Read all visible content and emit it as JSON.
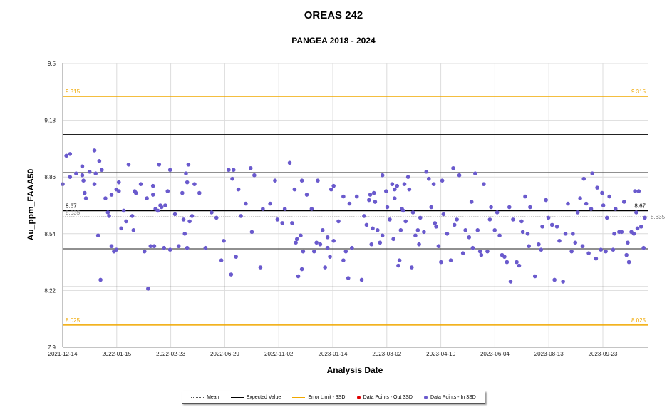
{
  "chart_data": {
    "type": "scatter",
    "title": "OREAS 242",
    "subtitle": "PANGEA 2018 - 2024",
    "xlabel": "Analysis Date",
    "ylabel": "Au_ppm_FAAA50",
    "ylim": [
      7.9,
      9.5
    ],
    "y_ticks": [
      "9.5",
      "9.18",
      "8.86",
      "8.54",
      "8.22",
      "7.9"
    ],
    "x_ticks": [
      "2021-12-14",
      "2022-01-15",
      "2022-02-23",
      "2022-06-29",
      "2022-11-02",
      "2023-01-14",
      "2023-03-02",
      "2023-04-10",
      "2023-06-04",
      "2023-08-13",
      "2023-09-23"
    ],
    "grid": true,
    "reference_lines": {
      "mean": {
        "value": 8.635,
        "label": "8.635",
        "color": "#777777"
      },
      "expected": {
        "value": 8.67,
        "label": "8.67",
        "color": "#000000"
      },
      "sd_lines": [
        9.1,
        8.885,
        8.455,
        8.24
      ],
      "error_upper": {
        "value": 9.315,
        "label": "9.315",
        "color": "#f0a800"
      },
      "error_lower": {
        "value": 8.025,
        "label": "8.025",
        "color": "#f0a800"
      }
    },
    "series": [
      {
        "name": "Data Points - Out 3SD",
        "color": "#e00000",
        "points": []
      },
      {
        "name": "Data Points - In 3SD",
        "color": "#6a5acd",
        "points": [
          [
            0.0,
            8.82
          ],
          [
            0.15,
            8.98
          ],
          [
            0.3,
            8.86
          ],
          [
            0.3,
            8.99
          ],
          [
            0.55,
            8.88
          ],
          [
            0.8,
            8.87
          ],
          [
            0.8,
            8.92
          ],
          [
            0.85,
            8.84
          ],
          [
            0.9,
            8.77
          ],
          [
            0.95,
            8.74
          ],
          [
            1.1,
            8.89
          ],
          [
            1.3,
            8.82
          ],
          [
            1.3,
            9.01
          ],
          [
            1.35,
            8.88
          ],
          [
            1.45,
            8.53
          ],
          [
            1.5,
            8.95
          ],
          [
            1.55,
            8.28
          ],
          [
            1.6,
            8.9
          ],
          [
            1.75,
            8.74
          ],
          [
            1.85,
            8.66
          ],
          [
            1.9,
            8.64
          ],
          [
            2.0,
            8.47
          ],
          [
            2.0,
            8.76
          ],
          [
            2.1,
            8.44
          ],
          [
            2.2,
            8.45
          ],
          [
            2.2,
            8.79
          ],
          [
            2.3,
            8.83
          ],
          [
            2.3,
            8.78
          ],
          [
            2.4,
            8.57
          ],
          [
            2.5,
            8.67
          ],
          [
            2.6,
            8.61
          ],
          [
            2.7,
            8.93
          ],
          [
            2.85,
            8.64
          ],
          [
            2.9,
            8.56
          ],
          [
            2.95,
            8.78
          ],
          [
            3.0,
            8.77
          ],
          [
            3.2,
            8.82
          ],
          [
            3.35,
            8.44
          ],
          [
            3.45,
            8.74
          ],
          [
            3.5,
            8.23
          ],
          [
            3.6,
            8.47
          ],
          [
            3.7,
            8.81
          ],
          [
            3.7,
            8.76
          ],
          [
            3.75,
            8.47
          ],
          [
            3.8,
            8.68
          ],
          [
            3.9,
            8.67
          ],
          [
            3.95,
            8.93
          ],
          [
            4.0,
            8.7
          ],
          [
            4.05,
            8.69
          ],
          [
            4.15,
            8.46
          ],
          [
            4.2,
            8.7
          ],
          [
            4.3,
            8.78
          ],
          [
            4.4,
            8.9
          ],
          [
            4.4,
            8.45
          ],
          [
            4.6,
            8.65
          ],
          [
            4.75,
            8.47
          ],
          [
            4.9,
            8.77
          ],
          [
            4.95,
            8.62
          ],
          [
            5.0,
            8.54
          ],
          [
            5.05,
            8.88
          ],
          [
            5.1,
            8.46
          ],
          [
            5.1,
            8.83
          ],
          [
            5.15,
            8.93
          ],
          [
            5.2,
            8.61
          ],
          [
            5.3,
            8.64
          ],
          [
            5.4,
            8.82
          ],
          [
            5.6,
            8.77
          ],
          [
            5.85,
            8.46
          ],
          [
            6.1,
            8.66
          ],
          [
            6.3,
            8.63
          ],
          [
            6.5,
            8.39
          ],
          [
            6.6,
            8.5
          ],
          [
            6.8,
            8.9
          ],
          [
            6.9,
            8.31
          ],
          [
            6.95,
            8.85
          ],
          [
            7.0,
            8.9
          ],
          [
            7.1,
            8.41
          ],
          [
            7.2,
            8.79
          ],
          [
            7.3,
            8.64
          ],
          [
            7.5,
            8.71
          ],
          [
            7.7,
            8.91
          ],
          [
            7.75,
            8.55
          ],
          [
            7.85,
            8.87
          ],
          [
            8.1,
            8.35
          ],
          [
            8.2,
            8.68
          ],
          [
            8.5,
            8.71
          ],
          [
            8.7,
            8.84
          ],
          [
            8.8,
            8.62
          ],
          [
            9.0,
            8.6
          ],
          [
            9.1,
            8.68
          ],
          [
            9.3,
            8.94
          ],
          [
            9.4,
            8.6
          ],
          [
            9.5,
            8.79
          ],
          [
            9.55,
            8.49
          ],
          [
            9.6,
            8.51
          ],
          [
            9.65,
            8.3
          ],
          [
            9.75,
            8.53
          ],
          [
            9.8,
            8.34
          ],
          [
            9.8,
            8.84
          ],
          [
            9.85,
            8.44
          ],
          [
            10.0,
            8.76
          ],
          [
            10.2,
            8.68
          ],
          [
            10.3,
            8.44
          ],
          [
            10.4,
            8.49
          ],
          [
            10.45,
            8.84
          ],
          [
            10.55,
            8.48
          ],
          [
            10.65,
            8.56
          ],
          [
            10.75,
            8.35
          ],
          [
            10.85,
            8.46
          ],
          [
            10.85,
            8.52
          ],
          [
            10.95,
            8.41
          ],
          [
            11.0,
            8.79
          ],
          [
            11.1,
            8.5
          ],
          [
            11.1,
            8.81
          ],
          [
            11.3,
            8.61
          ],
          [
            11.5,
            8.39
          ],
          [
            11.5,
            8.75
          ],
          [
            11.6,
            8.44
          ],
          [
            11.7,
            8.29
          ],
          [
            11.75,
            8.71
          ],
          [
            11.85,
            8.46
          ],
          [
            12.05,
            8.75
          ],
          [
            12.25,
            8.28
          ],
          [
            12.35,
            8.64
          ],
          [
            12.45,
            8.59
          ],
          [
            12.55,
            8.73
          ],
          [
            12.6,
            8.76
          ],
          [
            12.65,
            8.48
          ],
          [
            12.7,
            8.57
          ],
          [
            12.75,
            8.77
          ],
          [
            12.8,
            8.72
          ],
          [
            12.9,
            8.56
          ],
          [
            13.0,
            8.49
          ],
          [
            13.1,
            8.53
          ],
          [
            13.1,
            8.87
          ],
          [
            13.25,
            8.78
          ],
          [
            13.3,
            8.69
          ],
          [
            13.4,
            8.62
          ],
          [
            13.5,
            8.82
          ],
          [
            13.55,
            8.51
          ],
          [
            13.6,
            8.74
          ],
          [
            13.6,
            8.79
          ],
          [
            13.7,
            8.81
          ],
          [
            13.75,
            8.36
          ],
          [
            13.8,
            8.39
          ],
          [
            13.85,
            8.56
          ],
          [
            13.9,
            8.68
          ],
          [
            13.95,
            8.67
          ],
          [
            14.0,
            8.82
          ],
          [
            14.05,
            8.61
          ],
          [
            14.15,
            8.86
          ],
          [
            14.2,
            8.79
          ],
          [
            14.3,
            8.35
          ],
          [
            14.35,
            8.66
          ],
          [
            14.45,
            8.53
          ],
          [
            14.55,
            8.56
          ],
          [
            14.6,
            8.48
          ],
          [
            14.65,
            8.63
          ],
          [
            14.8,
            8.55
          ],
          [
            14.9,
            8.89
          ],
          [
            15.0,
            8.85
          ],
          [
            15.1,
            8.69
          ],
          [
            15.2,
            8.82
          ],
          [
            15.25,
            8.6
          ],
          [
            15.3,
            8.58
          ],
          [
            15.4,
            8.47
          ],
          [
            15.5,
            8.38
          ],
          [
            15.55,
            8.84
          ],
          [
            15.6,
            8.65
          ],
          [
            15.75,
            8.54
          ],
          [
            15.9,
            8.39
          ],
          [
            16.0,
            8.91
          ],
          [
            16.05,
            8.59
          ],
          [
            16.15,
            8.62
          ],
          [
            16.25,
            8.87
          ],
          [
            16.4,
            8.43
          ],
          [
            16.5,
            8.56
          ],
          [
            16.65,
            8.52
          ],
          [
            16.75,
            8.72
          ],
          [
            16.8,
            8.46
          ],
          [
            16.9,
            8.88
          ],
          [
            17.0,
            8.56
          ],
          [
            17.1,
            8.44
          ],
          [
            17.15,
            8.42
          ],
          [
            17.25,
            8.82
          ],
          [
            17.4,
            8.44
          ],
          [
            17.5,
            8.62
          ],
          [
            17.55,
            8.69
          ],
          [
            17.7,
            8.56
          ],
          [
            17.8,
            8.66
          ],
          [
            17.9,
            8.53
          ],
          [
            18.0,
            8.42
          ],
          [
            18.1,
            8.41
          ],
          [
            18.2,
            8.38
          ],
          [
            18.3,
            8.69
          ],
          [
            18.35,
            8.27
          ],
          [
            18.45,
            8.62
          ],
          [
            18.6,
            8.38
          ],
          [
            18.7,
            8.36
          ],
          [
            18.8,
            8.61
          ],
          [
            18.85,
            8.55
          ],
          [
            18.95,
            8.75
          ],
          [
            19.05,
            8.54
          ],
          [
            19.1,
            8.47
          ],
          [
            19.15,
            8.69
          ],
          [
            19.35,
            8.3
          ],
          [
            19.5,
            8.48
          ],
          [
            19.6,
            8.45
          ],
          [
            19.65,
            8.58
          ],
          [
            19.8,
            8.73
          ],
          [
            19.9,
            8.63
          ],
          [
            20.05,
            8.59
          ],
          [
            20.15,
            8.28
          ],
          [
            20.25,
            8.58
          ],
          [
            20.35,
            8.5
          ],
          [
            20.5,
            8.27
          ],
          [
            20.6,
            8.54
          ],
          [
            20.7,
            8.71
          ],
          [
            20.85,
            8.44
          ],
          [
            20.9,
            8.54
          ],
          [
            21.0,
            8.49
          ],
          [
            21.1,
            8.66
          ],
          [
            21.2,
            8.74
          ],
          [
            21.3,
            8.47
          ],
          [
            21.35,
            8.85
          ],
          [
            21.45,
            8.71
          ],
          [
            21.55,
            8.43
          ],
          [
            21.65,
            8.68
          ],
          [
            21.7,
            8.88
          ],
          [
            21.85,
            8.4
          ],
          [
            21.9,
            8.8
          ],
          [
            22.05,
            8.45
          ],
          [
            22.1,
            8.77
          ],
          [
            22.15,
            8.7
          ],
          [
            22.25,
            8.44
          ],
          [
            22.3,
            8.63
          ],
          [
            22.4,
            8.75
          ],
          [
            22.55,
            8.45
          ],
          [
            22.6,
            8.54
          ],
          [
            22.65,
            8.68
          ],
          [
            22.8,
            8.55
          ],
          [
            22.9,
            8.55
          ],
          [
            23.0,
            8.72
          ],
          [
            23.1,
            8.42
          ],
          [
            23.15,
            8.49
          ],
          [
            23.2,
            8.38
          ],
          [
            23.3,
            8.55
          ],
          [
            23.4,
            8.54
          ],
          [
            23.45,
            8.78
          ],
          [
            23.5,
            8.66
          ],
          [
            23.55,
            8.57
          ],
          [
            23.6,
            8.78
          ],
          [
            23.7,
            8.58
          ],
          [
            23.8,
            8.46
          ],
          [
            23.85,
            8.63
          ]
        ]
      }
    ],
    "legend": {
      "placement": "bottom",
      "items": [
        {
          "label": "Mean",
          "style": "dotted",
          "color": "#555555"
        },
        {
          "label": "Expected Value",
          "style": "solid",
          "color": "#000000"
        },
        {
          "label": "Error Limit - 3SD",
          "style": "solid",
          "color": "#f0a800"
        },
        {
          "label": "Data Points - Out 3SD",
          "style": "dot",
          "color": "#e00000"
        },
        {
          "label": "Data Points - In 3SD",
          "style": "dot",
          "color": "#6a5acd"
        }
      ]
    }
  }
}
